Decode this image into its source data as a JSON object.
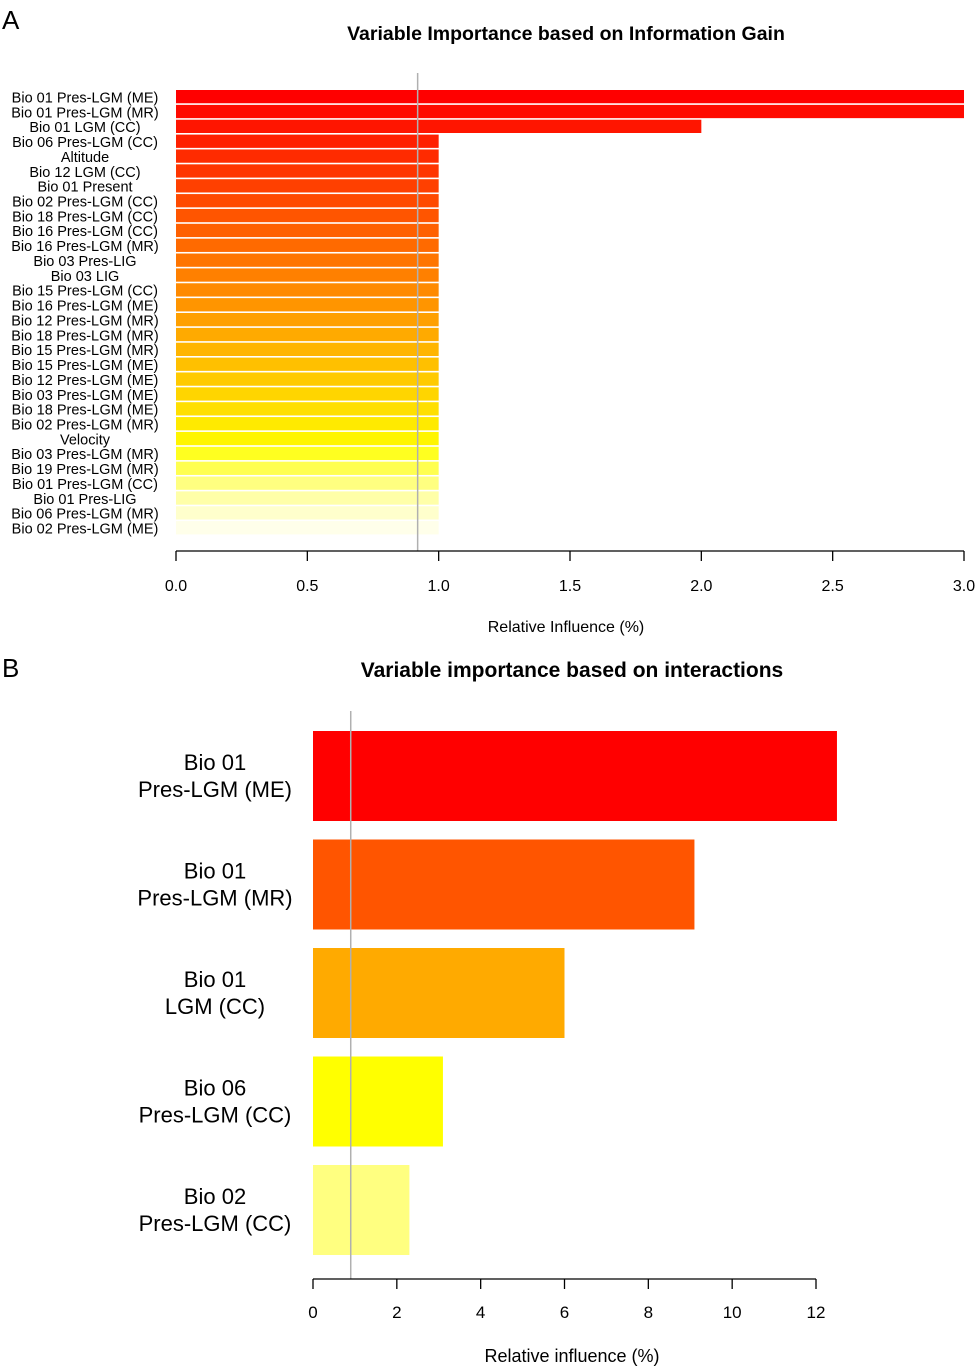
{
  "chart_data": [
    {
      "panel": "A",
      "type": "bar",
      "orientation": "horizontal",
      "title": "Variable Importance based on Information Gain",
      "xlabel": "Relative Influence (%)",
      "ylabel": "",
      "xlim": [
        0,
        3.0
      ],
      "xticks": [
        "0.0",
        "0.5",
        "1.0",
        "1.5",
        "2.0",
        "2.5",
        "3.0"
      ],
      "reference_line": 0.92,
      "grid": false,
      "categories": [
        "Bio 01 Pres-LGM (ME)",
        "Bio 01 Pres-LGM (MR)",
        "Bio 01 LGM (CC)",
        "Bio 06 Pres-LGM (CC)",
        "Altitude",
        "Bio 12 LGM (CC)",
        "Bio 01 Present",
        "Bio 02 Pres-LGM (CC)",
        "Bio 18 Pres-LGM (CC)",
        "Bio 16 Pres-LGM (CC)",
        "Bio 16 Pres-LGM (MR)",
        "Bio 03 Pres-LIG",
        "Bio 03 LIG",
        "Bio 15 Pres-LGM (CC)",
        "Bio 16 Pres-LGM (ME)",
        "Bio 12 Pres-LGM (MR)",
        "Bio 18 Pres-LGM (MR)",
        "Bio 15 Pres-LGM (MR)",
        "Bio 15 Pres-LGM (ME)",
        "Bio 12 Pres-LGM (ME)",
        "Bio 03 Pres-LGM (ME)",
        "Bio 18 Pres-LGM (ME)",
        "Bio 02 Pres-LGM (MR)",
        "Velocity",
        "Bio 03 Pres-LGM (MR)",
        "Bio 19 Pres-LGM (MR)",
        "Bio 01 Pres-LGM (CC)",
        "Bio 01 Pres-LIG",
        "Bio 06 Pres-LGM (MR)",
        "Bio 02 Pres-LGM (ME)"
      ],
      "values": [
        3.0,
        3.0,
        2.0,
        1.0,
        1.0,
        1.0,
        1.0,
        1.0,
        1.0,
        1.0,
        1.0,
        1.0,
        1.0,
        1.0,
        1.0,
        1.0,
        1.0,
        1.0,
        1.0,
        1.0,
        1.0,
        1.0,
        1.0,
        1.0,
        1.0,
        1.0,
        1.0,
        1.0,
        1.0,
        1.0
      ],
      "colors": [
        "#ff0000",
        "#ff0a00",
        "#ff1500",
        "#ff2000",
        "#ff2b00",
        "#ff3500",
        "#ff4000",
        "#ff4a00",
        "#ff5500",
        "#ff6000",
        "#ff6a00",
        "#ff7500",
        "#ff8000",
        "#ff8a00",
        "#ff9500",
        "#ffa000",
        "#ffaa00",
        "#ffb500",
        "#ffc000",
        "#ffca00",
        "#ffd500",
        "#ffdf00",
        "#ffea00",
        "#fff500",
        "#ffff20",
        "#ffff50",
        "#ffff80",
        "#ffffa8",
        "#ffffcc",
        "#ffffea"
      ]
    },
    {
      "panel": "B",
      "type": "bar",
      "orientation": "horizontal",
      "title": "Variable importance based on interactions",
      "xlabel": "Relative influence (%)",
      "ylabel": "",
      "xlim": [
        0,
        12
      ],
      "xticks": [
        "0",
        "2",
        "4",
        "6",
        "8",
        "10",
        "12"
      ],
      "reference_line": 0.9,
      "grid": false,
      "categories": [
        [
          "Bio 01",
          "Pres-LGM (ME)"
        ],
        [
          "Bio 01",
          "Pres-LGM (MR)"
        ],
        [
          "Bio 01",
          "LGM (CC)"
        ],
        [
          "Bio 06",
          "Pres-LGM (CC)"
        ],
        [
          "Bio 02",
          "Pres-LGM (CC)"
        ]
      ],
      "values": [
        12.5,
        9.1,
        6.0,
        3.1,
        2.3
      ],
      "colors": [
        "#ff0000",
        "#ff5500",
        "#ffaa00",
        "#ffff00",
        "#ffff80"
      ]
    }
  ]
}
